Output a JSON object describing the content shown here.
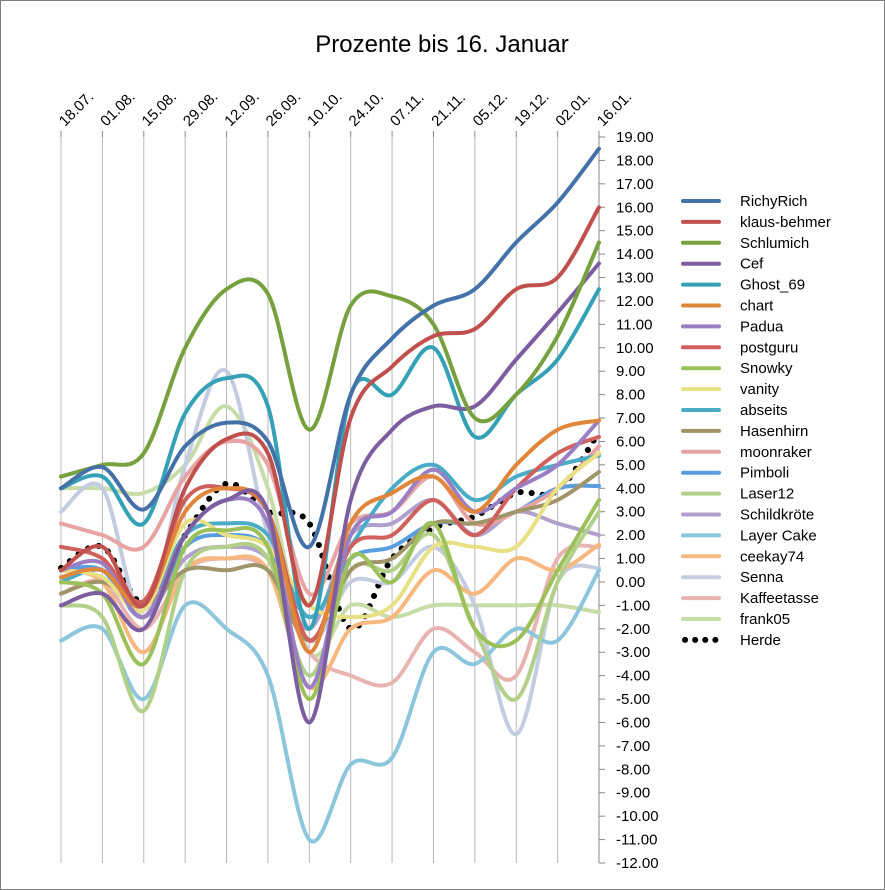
{
  "chart_data": {
    "type": "line",
    "title": "Prozente bis 16. Januar",
    "xlabel": "",
    "ylabel": "",
    "ylim": [
      -12,
      19
    ],
    "y_tick_step": 1,
    "grid": "vertical",
    "legend_position": "right",
    "categories": [
      "18.07.",
      "01.08.",
      "15.08.",
      "29.08.",
      "12.09.",
      "26.09.",
      "10.10.",
      "24.10.",
      "07.11.",
      "21.11.",
      "05.12.",
      "19.12.",
      "02.01.",
      "16.01."
    ],
    "y_tick_labels": [
      "19.00",
      "18.00",
      "17.00",
      "16.00",
      "15.00",
      "14.00",
      "13.00",
      "12.00",
      "11.00",
      "10.00",
      "9.00",
      "8.00",
      "7.00",
      "6.00",
      "5.00",
      "4.00",
      "3.00",
      "2.00",
      "1.00",
      "0.00",
      "-1.00",
      "-2.00",
      "-3.00",
      "-4.00",
      "-5.00",
      "-6.00",
      "-7.00",
      "-8.00",
      "-9.00",
      "-10.00",
      "-11.00",
      "-12.00"
    ],
    "series": [
      {
        "name": "RichyRich",
        "color": "#4472a8",
        "values": [
          4.0,
          4.9,
          3.1,
          5.8,
          6.8,
          6.0,
          1.5,
          8.0,
          10.4,
          11.8,
          12.5,
          14.5,
          16.2,
          18.5
        ]
      },
      {
        "name": "klaus-behmer",
        "color": "#c0504d",
        "values": [
          0.5,
          1.5,
          -1.0,
          4.0,
          6.1,
          5.5,
          -1.0,
          7.0,
          9.2,
          10.5,
          10.8,
          12.5,
          13.0,
          16.0
        ]
      },
      {
        "name": "Schlumich",
        "color": "#77a03e",
        "values": [
          4.5,
          5.0,
          5.5,
          10.0,
          12.5,
          12.3,
          6.5,
          11.8,
          12.2,
          11.0,
          7.0,
          8.0,
          10.5,
          14.5
        ]
      },
      {
        "name": "Cef",
        "color": "#7c5ea0",
        "values": [
          -1.0,
          -0.5,
          -2.0,
          2.0,
          3.5,
          3.0,
          -6.0,
          3.5,
          6.5,
          7.5,
          7.5,
          9.5,
          11.5,
          13.6
        ]
      },
      {
        "name": "Ghost_69",
        "color": "#35a1b7",
        "values": [
          4.0,
          4.5,
          2.5,
          7.2,
          8.7,
          7.5,
          -2.0,
          8.0,
          8.0,
          10.0,
          6.2,
          8.0,
          9.5,
          12.5
        ]
      },
      {
        "name": "chart",
        "color": "#e0863a",
        "values": [
          0.2,
          0.5,
          -1.0,
          3.0,
          4.0,
          3.0,
          -3.0,
          2.5,
          3.8,
          4.5,
          3.0,
          5.0,
          6.5,
          6.9
        ]
      },
      {
        "name": "Padua",
        "color": "#9b7fc4",
        "values": [
          0.5,
          0.8,
          -1.5,
          2.0,
          3.5,
          2.5,
          -4.5,
          2.0,
          3.0,
          4.8,
          3.0,
          4.0,
          5.0,
          6.9
        ]
      },
      {
        "name": "postguru",
        "color": "#d0605c",
        "values": [
          1.5,
          1.0,
          -0.8,
          3.5,
          4.0,
          3.0,
          -2.5,
          1.5,
          2.0,
          3.5,
          2.0,
          4.0,
          5.5,
          6.2
        ]
      },
      {
        "name": "Snowky",
        "color": "#9cc05a",
        "values": [
          0.0,
          -0.5,
          -3.5,
          1.5,
          2.2,
          1.5,
          -5.0,
          1.0,
          0.0,
          2.5,
          -2.0,
          -2.5,
          0.5,
          3.5
        ]
      },
      {
        "name": "vanity",
        "color": "#e8e084",
        "values": [
          0.5,
          0.2,
          -1.2,
          2.5,
          2.0,
          1.5,
          -1.0,
          -1.5,
          -1.0,
          1.5,
          1.5,
          1.5,
          4.0,
          5.5
        ]
      },
      {
        "name": "abseits",
        "color": "#4bacc6",
        "values": [
          0.0,
          0.5,
          -1.0,
          2.0,
          2.5,
          2.0,
          -1.5,
          1.5,
          4.0,
          5.0,
          3.5,
          4.5,
          5.0,
          5.4
        ]
      },
      {
        "name": "Hasenhirn",
        "color": "#a0946a",
        "values": [
          -0.5,
          0.0,
          -1.0,
          0.5,
          0.5,
          0.5,
          -2.5,
          0.5,
          1.0,
          2.5,
          2.5,
          3.0,
          3.5,
          4.7
        ]
      },
      {
        "name": "moonraker",
        "color": "#e8a4a2",
        "values": [
          2.5,
          2.0,
          1.5,
          4.5,
          6.0,
          5.0,
          -0.5,
          2.5,
          3.0,
          4.5,
          2.5,
          3.0,
          4.0,
          5.8
        ]
      },
      {
        "name": "Pimboli",
        "color": "#5a9ee0",
        "values": [
          0.5,
          0.5,
          -1.5,
          1.5,
          2.0,
          1.5,
          -1.5,
          1.0,
          1.5,
          2.5,
          2.5,
          3.0,
          4.0,
          4.1
        ]
      },
      {
        "name": "Laser12",
        "color": "#b2d08a",
        "values": [
          -1.0,
          -1.5,
          -5.5,
          0.5,
          1.5,
          1.0,
          -4.0,
          0.5,
          0.5,
          2.0,
          -2.0,
          -5.0,
          0.0,
          3.0
        ]
      },
      {
        "name": "Schildkröte",
        "color": "#b0a0cc",
        "values": [
          0.0,
          0.5,
          -1.5,
          1.0,
          1.5,
          1.0,
          -2.0,
          2.0,
          2.5,
          3.5,
          2.0,
          3.0,
          2.5,
          2.0
        ]
      },
      {
        "name": "Layer Cake",
        "color": "#8cc6dc",
        "values": [
          -2.5,
          -2.0,
          -5.0,
          -1.0,
          -2.0,
          -4.0,
          -11.0,
          -7.8,
          -7.5,
          -3.0,
          -3.5,
          -2.0,
          -2.5,
          0.5
        ]
      },
      {
        "name": "ceekay74",
        "color": "#f6b87e",
        "values": [
          0.5,
          0.0,
          -3.0,
          0.5,
          1.0,
          0.5,
          -4.5,
          -2.0,
          -1.5,
          0.5,
          -0.5,
          1.0,
          0.5,
          1.6
        ]
      },
      {
        "name": "Senna",
        "color": "#c4cce0",
        "values": [
          3.0,
          4.0,
          -1.5,
          5.0,
          9.0,
          2.0,
          -2.5,
          0.0,
          0.0,
          1.5,
          -1.0,
          -6.5,
          0.0,
          0.6
        ]
      },
      {
        "name": "Kaffeetasse",
        "color": "#e8b4b2",
        "values": [
          -0.5,
          0.0,
          -2.0,
          0.5,
          1.0,
          0.5,
          -3.0,
          -4.0,
          -4.3,
          -2.0,
          -3.0,
          -4.0,
          1.0,
          1.5
        ]
      },
      {
        "name": "frank05",
        "color": "#c8dca8",
        "values": [
          4.0,
          4.0,
          3.8,
          5.0,
          7.5,
          4.0,
          -3.0,
          -1.0,
          -1.5,
          -1.0,
          -1.0,
          -1.0,
          -1.0,
          -1.3
        ]
      },
      {
        "name": "Herde",
        "color": "#000000",
        "dotted": true,
        "values": [
          0.6,
          1.5,
          -0.9,
          2.0,
          4.2,
          3.0,
          2.5,
          -2.0,
          1.0,
          2.3,
          2.8,
          3.8,
          3.9,
          6.4
        ]
      }
    ]
  }
}
